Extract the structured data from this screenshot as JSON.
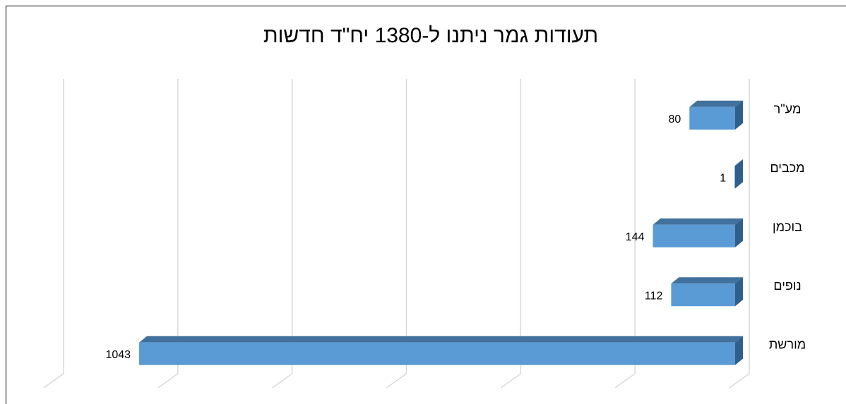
{
  "chart_data": {
    "type": "bar",
    "orientation": "horizontal",
    "reversed": true,
    "title": "תעודות גמר ניתנו ל-1380 יח\"ד חדשות",
    "categories": [
      "מע\"ר",
      "מכבים",
      "בוכמן",
      "נופים",
      "מורשת"
    ],
    "values": [
      80,
      1,
      144,
      112,
      1043
    ],
    "color": "#5b9bd5",
    "xlim": [
      0,
      1200
    ],
    "xticks": [
      0,
      200,
      400,
      600,
      800,
      1000,
      1200
    ],
    "grid": true
  }
}
